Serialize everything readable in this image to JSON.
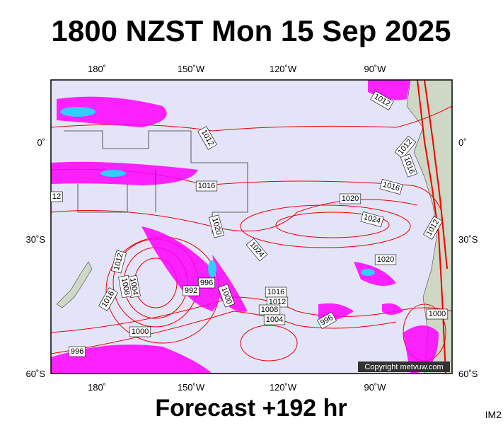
{
  "header": {
    "title": "1800 NZST Mon 15 Sep 2025"
  },
  "map": {
    "lon_labels": [
      "180˚",
      "150˚W",
      "120˚W",
      "90˚W"
    ],
    "lat_labels": [
      "0˚",
      "30˚S",
      "60˚S"
    ],
    "isobar_labels": [
      "1012",
      "1012",
      "1012",
      "1016",
      "1016",
      "1016",
      "1020",
      "1024",
      "1020",
      "1024",
      "1012",
      "1020",
      "1012",
      "1004",
      "1008",
      "996",
      "992",
      "1000",
      "1016",
      "1016",
      "1012",
      "1008",
      "1004",
      "996",
      "1000",
      "1000",
      "996",
      "12"
    ],
    "copyright": "Copyright metvuw.com"
  },
  "footer": {
    "forecast": "Forecast +192 hr",
    "code": "IM2"
  }
}
